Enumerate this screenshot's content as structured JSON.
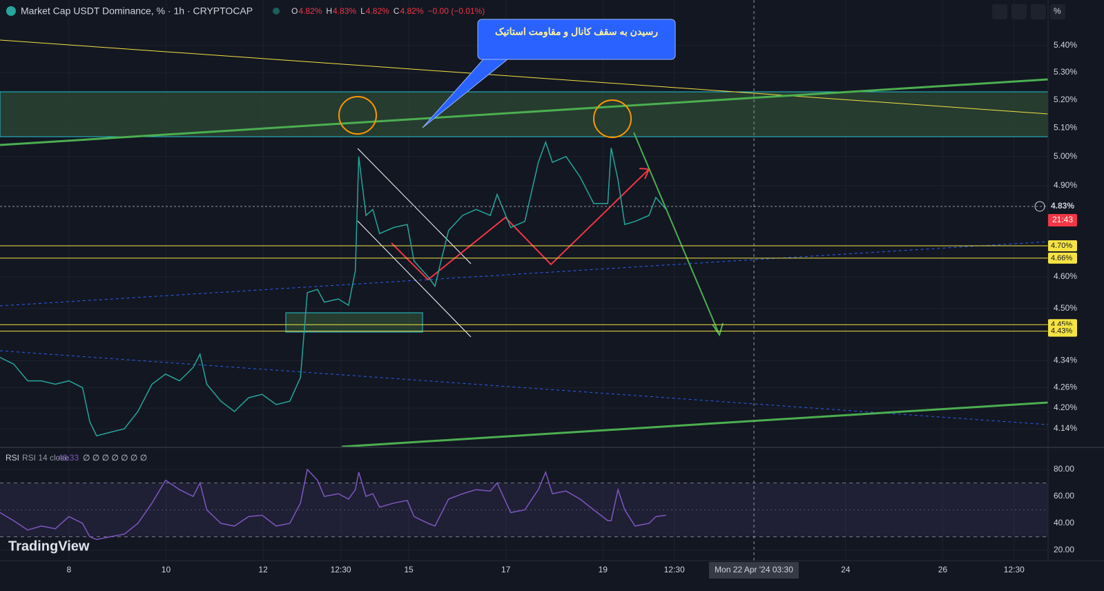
{
  "header": {
    "symbol": "Market Cap USDT Dominance, % · 1h · CRYPTOCAP",
    "ohlc": [
      {
        "key": "O",
        "value": "4.82%"
      },
      {
        "key": "H",
        "value": "4.83%"
      },
      {
        "key": "L",
        "value": "4.82%"
      },
      {
        "key": "C",
        "value": "4.82%"
      }
    ],
    "change": "−0.00 (−0.01%)",
    "scale_mode": "%"
  },
  "annotation": "رسیدن به سقف کانال و مقاومت استاتیک",
  "logo": "TradingView",
  "chart_data": [
    {
      "type": "line",
      "color": "#26a69a",
      "log_scale": true,
      "grid": true,
      "x": [
        6.58,
        6.86,
        7.15,
        7.43,
        7.72,
        8,
        8.28,
        8.43,
        8.57,
        8.85,
        9.14,
        9.42,
        9.71,
        9.99,
        10.28,
        10.56,
        10.7,
        10.84,
        11.13,
        11.41,
        11.7,
        11.98,
        12.27,
        12.55,
        12.77,
        12.91,
        13.12,
        13.26,
        13.55,
        13.76,
        13.9,
        13.97,
        14.12,
        14.26,
        14.4,
        14.69,
        14.97,
        15.11,
        15.4,
        15.54,
        15.68,
        15.82,
        16.11,
        16.39,
        16.68,
        16.82,
        17.1,
        17.39,
        17.67,
        17.82,
        17.96,
        18.24,
        18.53,
        18.81,
        19.1,
        19.17,
        19.31,
        19.45,
        19.66,
        19.95,
        20.09,
        20.3
      ],
      "values": [
        4.35,
        4.33,
        4.28,
        4.28,
        4.27,
        4.28,
        4.26,
        4.16,
        4.12,
        4.13,
        4.14,
        4.19,
        4.27,
        4.3,
        4.28,
        4.32,
        4.36,
        4.27,
        4.22,
        4.19,
        4.23,
        4.24,
        4.21,
        4.22,
        4.29,
        4.55,
        4.56,
        4.52,
        4.53,
        4.51,
        4.62,
        5.0,
        4.8,
        4.82,
        4.74,
        4.76,
        4.77,
        4.65,
        4.6,
        4.57,
        4.66,
        4.75,
        4.8,
        4.82,
        4.8,
        4.87,
        4.76,
        4.78,
        4.98,
        5.05,
        4.98,
        5.0,
        4.93,
        4.84,
        4.84,
        5.03,
        4.92,
        4.77,
        4.78,
        4.8,
        4.86,
        4.82
      ],
      "xlim": [
        6.58,
        28.17
      ],
      "xticks": [
        8,
        10,
        12,
        {
          "value": 13.6,
          "label": "12:30"
        },
        15,
        17,
        19,
        {
          "value": 20.47,
          "label": "12:30"
        },
        24,
        26,
        {
          "value": 27.47,
          "label": "12:30"
        }
      ],
      "ylim": [
        4.087,
        5.573
      ],
      "yticks": [
        {
          "value": 5.4,
          "label": "5.40%"
        },
        {
          "value": 5.3,
          "label": "5.30%"
        },
        {
          "value": 5.2,
          "label": "5.20%"
        },
        {
          "value": 5.1,
          "label": "5.10%"
        },
        {
          "value": 5.0,
          "label": "5.00%"
        },
        {
          "value": 4.9,
          "label": "4.90%"
        },
        {
          "value": 4.6,
          "label": "4.60%"
        },
        {
          "value": 4.5,
          "label": "4.50%"
        },
        {
          "value": 4.34,
          "label": "4.34%"
        },
        {
          "value": 4.26,
          "label": "4.26%"
        },
        {
          "value": 4.2,
          "label": "4.20%"
        },
        {
          "value": 4.14,
          "label": "4.14%"
        }
      ],
      "levels": {
        "values": [
          4.7,
          4.66,
          4.45,
          4.43
        ],
        "value_labels": [
          "4.70%",
          "4.66%",
          "4.45%",
          "4.43%"
        ],
        "color": "#f5e342"
      },
      "last_price": {
        "value": 4.83,
        "label": "4.83%"
      },
      "countdown": "21:43",
      "crosshair": {
        "value": 22.11,
        "label": "Mon 22 Apr '24  03:30"
      }
    },
    {
      "type": "line",
      "title": "RSI",
      "label": "RSI 14 close",
      "last_value": 46.33,
      "inputs": "∅ ∅ ∅ ∅ ∅ ∅ ∅",
      "color": "#7e57c2",
      "values": [
        48,
        42,
        35,
        38,
        36,
        45,
        40,
        30,
        28,
        30,
        32,
        40,
        55,
        72,
        65,
        60,
        70,
        50,
        40,
        38,
        45,
        46,
        38,
        40,
        55,
        80,
        72,
        60,
        62,
        58,
        65,
        78,
        60,
        62,
        52,
        55,
        57,
        45,
        40,
        38,
        48,
        58,
        62,
        65,
        64,
        70,
        48,
        50,
        65,
        78,
        62,
        64,
        58,
        50,
        42,
        42,
        65,
        50,
        38,
        40,
        45,
        46
      ],
      "ylim": [
        13.3,
        95.4
      ],
      "yticks": [
        {
          "value": 80,
          "label": "80.00"
        },
        {
          "value": 60,
          "label": "60.00"
        },
        {
          "value": 40,
          "label": "40.00"
        },
        {
          "value": 20,
          "label": "20.00"
        }
      ],
      "band": [
        30,
        70
      ],
      "midline": 50
    }
  ]
}
